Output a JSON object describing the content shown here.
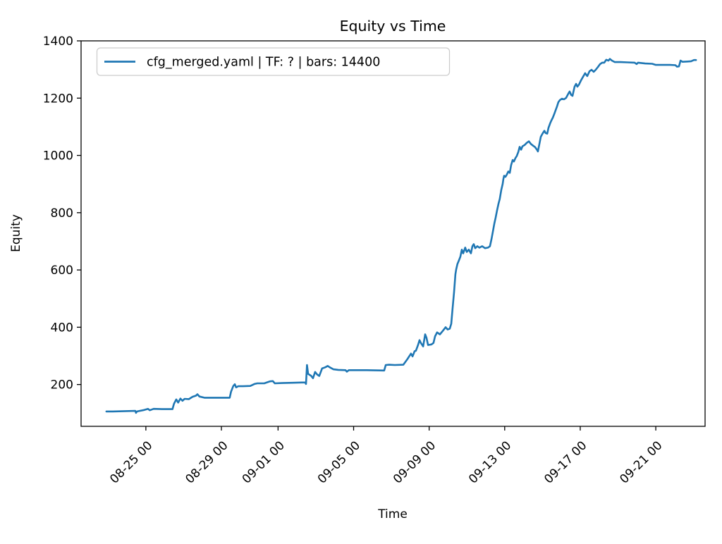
{
  "chart_data": {
    "type": "line",
    "title": "Equity vs Time",
    "xlabel": "Time",
    "ylabel": "Equity",
    "legend": {
      "position": "upper left",
      "entries": [
        {
          "label": "cfg_merged.yaml | TF: ? | bars: 14400",
          "color": "#1f77b4"
        }
      ]
    },
    "grid": false,
    "x_unit_note": "day offset from first plotted bar",
    "xlim": [
      -1.34,
      31.7
    ],
    "ylim": [
      54,
      1400
    ],
    "y_ticks": [
      200,
      400,
      600,
      800,
      1000,
      1200,
      1400
    ],
    "x_ticks": [
      {
        "d": 2.09,
        "label": "08-25 00"
      },
      {
        "d": 6.09,
        "label": "08-29 00"
      },
      {
        "d": 9.09,
        "label": "09-01 00"
      },
      {
        "d": 13.09,
        "label": "09-05 00"
      },
      {
        "d": 17.09,
        "label": "09-09 00"
      },
      {
        "d": 21.09,
        "label": "09-13 00"
      },
      {
        "d": 25.09,
        "label": "09-17 00"
      },
      {
        "d": 29.09,
        "label": "09-21 00"
      }
    ],
    "series": [
      {
        "name": "cfg_merged.yaml | TF: ? | bars: 14400",
        "color": "#1f77b4",
        "line_width": 2.6,
        "points": [
          [
            0,
            106
          ],
          [
            0.34,
            106
          ],
          [
            1.53,
            108
          ],
          [
            1.57,
            101
          ],
          [
            1.62,
            106
          ],
          [
            2.0,
            111
          ],
          [
            2.2,
            115
          ],
          [
            2.3,
            110
          ],
          [
            2.5,
            115
          ],
          [
            2.95,
            114
          ],
          [
            3.5,
            114
          ],
          [
            3.58,
            133
          ],
          [
            3.7,
            148
          ],
          [
            3.8,
            137
          ],
          [
            3.92,
            151
          ],
          [
            4.03,
            143
          ],
          [
            4.14,
            150
          ],
          [
            4.37,
            149
          ],
          [
            4.56,
            157
          ],
          [
            4.74,
            161
          ],
          [
            4.82,
            166
          ],
          [
            4.93,
            158
          ],
          [
            5.19,
            154
          ],
          [
            5.56,
            154
          ],
          [
            6.12,
            154
          ],
          [
            6.53,
            154
          ],
          [
            6.6,
            175
          ],
          [
            6.72,
            195
          ],
          [
            6.8,
            201
          ],
          [
            6.87,
            190
          ],
          [
            6.98,
            194
          ],
          [
            7.24,
            194
          ],
          [
            7.62,
            195
          ],
          [
            7.84,
            202
          ],
          [
            7.99,
            204
          ],
          [
            8.36,
            204
          ],
          [
            8.66,
            211
          ],
          [
            8.81,
            212
          ],
          [
            8.92,
            204
          ],
          [
            9.3,
            205
          ],
          [
            9.86,
            206
          ],
          [
            10.34,
            207
          ],
          [
            10.53,
            207
          ],
          [
            10.57,
            202
          ],
          [
            10.62,
            268
          ],
          [
            10.68,
            237
          ],
          [
            10.83,
            231
          ],
          [
            10.94,
            222
          ],
          [
            11.05,
            244
          ],
          [
            11.16,
            235
          ],
          [
            11.27,
            230
          ],
          [
            11.42,
            256
          ],
          [
            11.58,
            260
          ],
          [
            11.72,
            265
          ],
          [
            11.83,
            260
          ],
          [
            12.02,
            253
          ],
          [
            12.28,
            251
          ],
          [
            12.66,
            250
          ],
          [
            12.73,
            245
          ],
          [
            12.84,
            250
          ],
          [
            13.78,
            250
          ],
          [
            14.71,
            249
          ],
          [
            14.79,
            268
          ],
          [
            14.97,
            269
          ],
          [
            15.27,
            268
          ],
          [
            15.72,
            269
          ],
          [
            15.83,
            279
          ],
          [
            15.94,
            289
          ],
          [
            16.06,
            301
          ],
          [
            16.13,
            308
          ],
          [
            16.21,
            298
          ],
          [
            16.32,
            316
          ],
          [
            16.39,
            318
          ],
          [
            16.5,
            338
          ],
          [
            16.58,
            355
          ],
          [
            16.65,
            345
          ],
          [
            16.77,
            333
          ],
          [
            16.88,
            375
          ],
          [
            16.95,
            363
          ],
          [
            17.03,
            338
          ],
          [
            17.21,
            340
          ],
          [
            17.32,
            345
          ],
          [
            17.4,
            368
          ],
          [
            17.51,
            382
          ],
          [
            17.66,
            375
          ],
          [
            17.81,
            387
          ],
          [
            17.96,
            400
          ],
          [
            18.07,
            392
          ],
          [
            18.18,
            395
          ],
          [
            18.26,
            412
          ],
          [
            18.33,
            466
          ],
          [
            18.41,
            523
          ],
          [
            18.48,
            585
          ],
          [
            18.52,
            602
          ],
          [
            18.59,
            621
          ],
          [
            18.67,
            634
          ],
          [
            18.74,
            646
          ],
          [
            18.82,
            671
          ],
          [
            18.89,
            658
          ],
          [
            19.0,
            678
          ],
          [
            19.08,
            663
          ],
          [
            19.19,
            671
          ],
          [
            19.3,
            658
          ],
          [
            19.38,
            683
          ],
          [
            19.45,
            690
          ],
          [
            19.53,
            676
          ],
          [
            19.64,
            683
          ],
          [
            19.75,
            678
          ],
          [
            19.9,
            683
          ],
          [
            20.05,
            676
          ],
          [
            20.2,
            678
          ],
          [
            20.31,
            683
          ],
          [
            20.39,
            708
          ],
          [
            20.46,
            732
          ],
          [
            20.54,
            762
          ],
          [
            20.61,
            782
          ],
          [
            20.68,
            806
          ],
          [
            20.76,
            831
          ],
          [
            20.83,
            848
          ],
          [
            20.91,
            880
          ],
          [
            20.98,
            900
          ],
          [
            21.02,
            917
          ],
          [
            21.06,
            929
          ],
          [
            21.13,
            925
          ],
          [
            21.21,
            934
          ],
          [
            21.28,
            944
          ],
          [
            21.36,
            939
          ],
          [
            21.43,
            966
          ],
          [
            21.51,
            984
          ],
          [
            21.58,
            979
          ],
          [
            21.66,
            991
          ],
          [
            21.73,
            998
          ],
          [
            21.81,
            1012
          ],
          [
            21.88,
            1030
          ],
          [
            21.96,
            1020
          ],
          [
            22.03,
            1032
          ],
          [
            22.14,
            1036
          ],
          [
            22.26,
            1044
          ],
          [
            22.37,
            1049
          ],
          [
            22.48,
            1040
          ],
          [
            22.59,
            1034
          ],
          [
            22.7,
            1029
          ],
          [
            22.82,
            1018
          ],
          [
            22.85,
            1014
          ],
          [
            22.93,
            1041
          ],
          [
            23.0,
            1065
          ],
          [
            23.11,
            1078
          ],
          [
            23.19,
            1086
          ],
          [
            23.26,
            1078
          ],
          [
            23.34,
            1076
          ],
          [
            23.41,
            1096
          ],
          [
            23.49,
            1111
          ],
          [
            23.56,
            1122
          ],
          [
            23.64,
            1132
          ],
          [
            23.71,
            1144
          ],
          [
            23.78,
            1157
          ],
          [
            23.86,
            1171
          ],
          [
            23.93,
            1186
          ],
          [
            24.01,
            1193
          ],
          [
            24.12,
            1198
          ],
          [
            24.23,
            1196
          ],
          [
            24.34,
            1201
          ],
          [
            24.46,
            1216
          ],
          [
            24.53,
            1223
          ],
          [
            24.61,
            1211
          ],
          [
            24.68,
            1208
          ],
          [
            24.79,
            1240
          ],
          [
            24.87,
            1250
          ],
          [
            24.94,
            1240
          ],
          [
            25.02,
            1247
          ],
          [
            25.13,
            1262
          ],
          [
            25.24,
            1275
          ],
          [
            25.35,
            1287
          ],
          [
            25.46,
            1277
          ],
          [
            25.58,
            1294
          ],
          [
            25.69,
            1299
          ],
          [
            25.8,
            1292
          ],
          [
            25.91,
            1299
          ],
          [
            26.03,
            1309
          ],
          [
            26.14,
            1319
          ],
          [
            26.25,
            1324
          ],
          [
            26.36,
            1324
          ],
          [
            26.47,
            1334
          ],
          [
            26.58,
            1331
          ],
          [
            26.66,
            1337
          ],
          [
            26.77,
            1331
          ],
          [
            26.92,
            1326
          ],
          [
            27.22,
            1326
          ],
          [
            27.59,
            1325
          ],
          [
            27.97,
            1324
          ],
          [
            28.08,
            1319
          ],
          [
            28.15,
            1324
          ],
          [
            28.53,
            1321
          ],
          [
            28.9,
            1320
          ],
          [
            29.09,
            1316
          ],
          [
            29.46,
            1316
          ],
          [
            29.84,
            1316
          ],
          [
            30.13,
            1315
          ],
          [
            30.21,
            1310
          ],
          [
            30.32,
            1311
          ],
          [
            30.4,
            1331
          ],
          [
            30.51,
            1327
          ],
          [
            30.77,
            1328
          ],
          [
            30.96,
            1329
          ],
          [
            31.11,
            1333
          ],
          [
            31.22,
            1333
          ]
        ]
      }
    ]
  }
}
